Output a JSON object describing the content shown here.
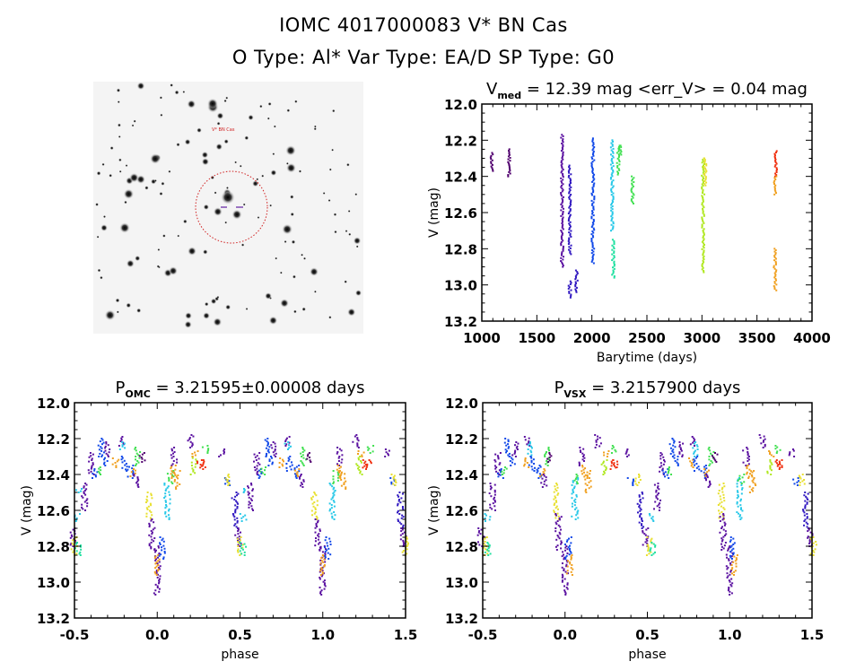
{
  "header": {
    "line1": "IOMC 4017000083   V* BN Cas",
    "line2": "O Type: Al*  Var Type: EA/D  SP Type: G0"
  },
  "finder_image": {
    "target_label": "V* BN Cas",
    "circle_color": "#d02020"
  },
  "colors": {
    "dp": "#50006e",
    "pu": "#5a10a0",
    "in": "#3018c0",
    "bl": "#1048e8",
    "cy": "#28c8e8",
    "tq": "#20e0a0",
    "gr": "#40e050",
    "yg": "#b0e820",
    "ye": "#e8e030",
    "or": "#f0a020",
    "re": "#f03010"
  },
  "chart_data": [
    {
      "type": "scatter",
      "title_main": "V",
      "title_sub": "med",
      "title_rest": " = 12.39 mag <err_V> = 0.04 mag",
      "xlabel": "Barytime (days)",
      "ylabel": "V (mag)",
      "xlim": [
        1000,
        4000
      ],
      "ylim": [
        13.2,
        12.0
      ],
      "y_inverted": true,
      "xticks": [
        "1000",
        "1500",
        "2000",
        "2500",
        "3000",
        "3500",
        "4000"
      ],
      "yticks": [
        "12.0",
        "12.2",
        "12.4",
        "12.6",
        "12.8",
        "13.0",
        "13.2"
      ],
      "xminor": 100,
      "yminor": 0.05,
      "segments": [
        [
          1090,
          12.27,
          12.37,
          "dp"
        ],
        [
          1250,
          12.25,
          12.4,
          "dp"
        ],
        [
          1730,
          12.17,
          12.9,
          "pu"
        ],
        [
          1800,
          12.34,
          12.83,
          "in"
        ],
        [
          1800,
          12.98,
          13.07,
          "in"
        ],
        [
          1860,
          12.92,
          13.04,
          "in"
        ],
        [
          2010,
          12.19,
          12.88,
          "bl"
        ],
        [
          2185,
          12.2,
          12.7,
          "cy"
        ],
        [
          2195,
          12.75,
          12.96,
          "tq"
        ],
        [
          2240,
          12.23,
          12.39,
          "gr"
        ],
        [
          2260,
          12.23,
          12.28,
          "gr"
        ],
        [
          2370,
          12.4,
          12.55,
          "gr"
        ],
        [
          3010,
          12.3,
          12.93,
          "yg"
        ],
        [
          3030,
          12.3,
          12.45,
          "ye"
        ],
        [
          3670,
          12.26,
          12.4,
          "re"
        ],
        [
          3665,
          12.4,
          12.5,
          "or"
        ],
        [
          3665,
          12.8,
          13.03,
          "or"
        ]
      ]
    },
    {
      "type": "scatter",
      "title_main": "P",
      "title_sub": "OMC",
      "title_rest": " = 3.21595±0.00008 days",
      "xlabel": "phase",
      "ylabel": "V (mag)",
      "xlim": [
        -0.5,
        1.5
      ],
      "ylim": [
        13.2,
        12.0
      ],
      "y_inverted": true,
      "xticks": [
        "-0.5",
        "0.0",
        "0.5",
        "1.0",
        "1.5"
      ],
      "yticks": [
        "12.0",
        "12.2",
        "12.4",
        "12.6",
        "12.8",
        "13.0",
        "13.2"
      ],
      "xminor": 0.1,
      "yminor": 0.05,
      "segments": [
        [
          0.0,
          12.8,
          13.07,
          "pu"
        ],
        [
          0.0,
          12.85,
          12.96,
          "or"
        ],
        [
          0.03,
          12.75,
          12.87,
          "bl"
        ],
        [
          0.95,
          12.5,
          12.65,
          "ye"
        ],
        [
          0.97,
          12.65,
          12.82,
          "pu"
        ],
        [
          0.06,
          12.45,
          12.65,
          "cy"
        ],
        [
          0.08,
          12.38,
          12.45,
          "gr"
        ],
        [
          0.1,
          12.25,
          12.35,
          "pu"
        ],
        [
          0.1,
          12.35,
          12.42,
          "or"
        ],
        [
          0.12,
          12.38,
          12.48,
          "or"
        ],
        [
          0.2,
          12.18,
          12.25,
          "pu"
        ],
        [
          0.22,
          12.3,
          12.4,
          "yg"
        ],
        [
          0.23,
          12.27,
          12.3,
          "or"
        ],
        [
          0.26,
          12.32,
          12.37,
          "re"
        ],
        [
          0.28,
          12.32,
          12.36,
          "re"
        ],
        [
          0.29,
          12.24,
          12.28,
          "gr"
        ],
        [
          0.39,
          12.26,
          12.3,
          "pu"
        ],
        [
          0.42,
          12.42,
          12.46,
          "bl"
        ],
        [
          0.43,
          12.4,
          12.46,
          "ye"
        ],
        [
          0.47,
          12.5,
          12.7,
          "in"
        ],
        [
          0.49,
          12.7,
          12.8,
          "pu"
        ],
        [
          0.5,
          12.75,
          12.85,
          "ye"
        ],
        [
          0.52,
          12.62,
          12.66,
          "cy"
        ],
        [
          0.52,
          12.78,
          12.85,
          "tq"
        ],
        [
          0.56,
          12.45,
          12.6,
          "pu"
        ],
        [
          0.6,
          12.28,
          12.4,
          "pu"
        ],
        [
          0.62,
          12.37,
          12.42,
          "bl"
        ],
        [
          0.64,
          12.36,
          12.4,
          "gr"
        ],
        [
          0.66,
          12.2,
          12.3,
          "bl"
        ],
        [
          0.68,
          12.3,
          12.35,
          "bl"
        ],
        [
          0.7,
          12.22,
          12.3,
          "pu"
        ],
        [
          0.75,
          12.31,
          12.36,
          "or"
        ],
        [
          0.78,
          12.19,
          12.24,
          "pu"
        ],
        [
          0.79,
          12.22,
          12.26,
          "cy"
        ],
        [
          0.8,
          12.3,
          12.38,
          "bl"
        ],
        [
          0.84,
          12.35,
          12.42,
          "bl"
        ],
        [
          0.85,
          12.37,
          12.41,
          "or"
        ],
        [
          0.87,
          12.4,
          12.47,
          "pu"
        ],
        [
          0.88,
          12.25,
          12.35,
          "gr"
        ],
        [
          0.91,
          12.28,
          12.33,
          "dp"
        ],
        [
          0.53,
          12.48,
          12.5,
          "cy"
        ]
      ]
    },
    {
      "type": "scatter",
      "title_main": "P",
      "title_sub": "VSX",
      "title_rest": " = 3.2157900 days",
      "xlabel": "phase",
      "ylabel": "V (mag)",
      "xlim": [
        -0.5,
        1.5
      ],
      "ylim": [
        13.2,
        12.0
      ],
      "y_inverted": true,
      "xticks": [
        "-0.5",
        "0.0",
        "0.5",
        "1.0",
        "1.5"
      ],
      "yticks": [
        "12.0",
        "12.2",
        "12.4",
        "12.6",
        "12.8",
        "13.0",
        "13.2"
      ],
      "xminor": 0.1,
      "yminor": 0.05,
      "segments": [
        [
          0.0,
          12.8,
          13.07,
          "pu"
        ],
        [
          0.03,
          12.85,
          12.96,
          "or"
        ],
        [
          0.02,
          12.75,
          12.87,
          "bl"
        ],
        [
          0.95,
          12.45,
          12.65,
          "ye"
        ],
        [
          0.96,
          12.62,
          12.82,
          "pu"
        ],
        [
          0.06,
          12.42,
          12.65,
          "cy"
        ],
        [
          0.07,
          12.4,
          12.45,
          "gr"
        ],
        [
          0.1,
          12.25,
          12.35,
          "pu"
        ],
        [
          0.12,
          12.35,
          12.42,
          "or"
        ],
        [
          0.14,
          12.38,
          12.5,
          "or"
        ],
        [
          0.2,
          12.18,
          12.25,
          "pu"
        ],
        [
          0.24,
          12.32,
          12.4,
          "yg"
        ],
        [
          0.25,
          12.27,
          12.3,
          "or"
        ],
        [
          0.29,
          12.32,
          12.37,
          "re"
        ],
        [
          0.3,
          12.32,
          12.36,
          "re"
        ],
        [
          0.29,
          12.24,
          12.28,
          "gr"
        ],
        [
          0.38,
          12.26,
          12.3,
          "pu"
        ],
        [
          0.4,
          12.42,
          12.46,
          "bl"
        ],
        [
          0.44,
          12.4,
          12.46,
          "ye"
        ],
        [
          0.46,
          12.5,
          12.7,
          "in"
        ],
        [
          0.49,
          12.7,
          12.8,
          "pu"
        ],
        [
          0.51,
          12.75,
          12.85,
          "ye"
        ],
        [
          0.53,
          12.62,
          12.66,
          "cy"
        ],
        [
          0.53,
          12.78,
          12.85,
          "tq"
        ],
        [
          0.56,
          12.45,
          12.6,
          "pu"
        ],
        [
          0.59,
          12.28,
          12.4,
          "pu"
        ],
        [
          0.61,
          12.37,
          12.42,
          "bl"
        ],
        [
          0.63,
          12.36,
          12.4,
          "gr"
        ],
        [
          0.65,
          12.2,
          12.3,
          "bl"
        ],
        [
          0.68,
          12.3,
          12.35,
          "bl"
        ],
        [
          0.7,
          12.22,
          12.3,
          "pu"
        ],
        [
          0.77,
          12.31,
          12.36,
          "or"
        ],
        [
          0.77,
          12.19,
          12.24,
          "pu"
        ],
        [
          0.79,
          12.22,
          12.3,
          "cy"
        ],
        [
          0.8,
          12.3,
          12.38,
          "bl"
        ],
        [
          0.84,
          12.35,
          12.42,
          "bl"
        ],
        [
          0.86,
          12.37,
          12.41,
          "or"
        ],
        [
          0.87,
          12.4,
          12.47,
          "pu"
        ],
        [
          0.89,
          12.25,
          12.35,
          "gr"
        ],
        [
          0.91,
          12.28,
          12.33,
          "dp"
        ]
      ]
    }
  ]
}
